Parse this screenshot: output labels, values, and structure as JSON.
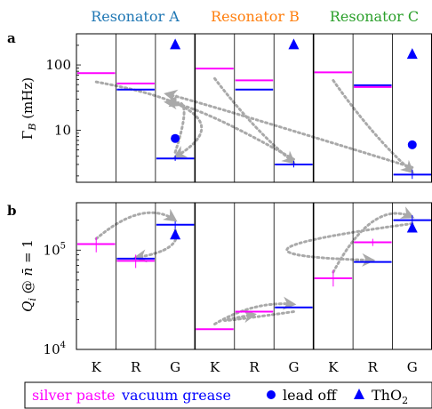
{
  "chart_data": {
    "type": "line",
    "columns": {
      "resonators": [
        {
          "name": "Resonator A",
          "color": "#1f77b4"
        },
        {
          "name": "Resonator B",
          "color": "#ff7f0e"
        },
        {
          "name": "Resonator C",
          "color": "#2ca02c"
        }
      ],
      "categories": [
        "K",
        "R",
        "G"
      ]
    },
    "panels": [
      {
        "label": "a",
        "ylabel": "Γ_B (mHz)",
        "yscale": "log",
        "ylim": [
          1.6,
          300
        ],
        "ticks": [
          {
            "value": 10,
            "label": "10"
          },
          {
            "value": 100,
            "label": "100"
          }
        ],
        "levels": [
          {
            "res": 0,
            "cat": 0,
            "value": 75,
            "material": "silver paste"
          },
          {
            "res": 0,
            "cat": 1,
            "value": 52,
            "material": "silver paste"
          },
          {
            "res": 0,
            "cat": 1,
            "value": 42,
            "material": "vacuum grease"
          },
          {
            "res": 0,
            "cat": 2,
            "value": 3.7,
            "material": "vacuum grease",
            "err": [
              3.4,
              4.1
            ]
          },
          {
            "res": 1,
            "cat": 0,
            "value": 88,
            "material": "silver paste"
          },
          {
            "res": 1,
            "cat": 1,
            "value": 58,
            "material": "silver paste"
          },
          {
            "res": 1,
            "cat": 1,
            "value": 42,
            "material": "vacuum grease"
          },
          {
            "res": 1,
            "cat": 2,
            "value": 3.0,
            "material": "vacuum grease",
            "err": [
              2.7,
              3.4
            ]
          },
          {
            "res": 2,
            "cat": 0,
            "value": 77,
            "material": "silver paste"
          },
          {
            "res": 2,
            "cat": 1,
            "value": 49,
            "material": "vacuum grease"
          },
          {
            "res": 2,
            "cat": 1,
            "value": 46,
            "material": "silver paste"
          },
          {
            "res": 2,
            "cat": 2,
            "value": 2.1,
            "material": "vacuum grease",
            "err": [
              1.8,
              2.5
            ]
          }
        ],
        "markers": [
          {
            "res": 0,
            "cat": 2,
            "value": 7.5,
            "shape": "circle"
          },
          {
            "res": 0,
            "cat": 2,
            "value": 210,
            "shape": "triangle"
          },
          {
            "res": 1,
            "cat": 2,
            "value": 210,
            "shape": "triangle"
          },
          {
            "res": 2,
            "cat": 2,
            "value": 6.0,
            "shape": "circle"
          },
          {
            "res": 2,
            "cat": 2,
            "value": 150,
            "shape": "triangle"
          }
        ],
        "arrows": [
          {
            "from": [
              0,
              0,
              55
            ],
            "ctrl": [
              1,
              1,
              20
            ],
            "to": [
              0,
              2,
              3.9
            ]
          },
          {
            "from": [
              0,
              2,
              4.6
            ],
            "ctrl": [
              0.5,
              2,
              40
            ],
            "to": [
              -0.05,
              2,
              24
            ]
          },
          {
            "from": [
              1,
              0,
              62
            ],
            "ctrl": [
              1,
              1,
              10
            ],
            "to": [
              1,
              2,
              3.2
            ]
          },
          {
            "from": [
              1,
              2,
              3.6
            ],
            "ctrl": [
              0.55,
              2,
              25
            ],
            "to": [
              -0.1,
              2,
              27
            ]
          },
          {
            "from": [
              2,
              0,
              58
            ],
            "ctrl": [
              2,
              1,
              8
            ],
            "to": [
              2,
              2,
              2.3
            ]
          },
          {
            "from": [
              2,
              2,
              2.7
            ],
            "ctrl": [
              0.4,
              2,
              30
            ],
            "to": [
              -0.1,
              2,
              36
            ]
          }
        ]
      },
      {
        "label": "b",
        "ylabel": "Q_i @ n̄ = 1",
        "yscale": "log",
        "ylim": [
          10000,
          300000
        ],
        "ticks": [
          {
            "value": 10000,
            "label": "10",
            "exp": "4"
          },
          {
            "value": 100000,
            "label": "10",
            "exp": "5"
          }
        ],
        "levels": [
          {
            "res": 0,
            "cat": 0,
            "value": 115000,
            "material": "silver paste",
            "err": [
              95000,
              135000
            ]
          },
          {
            "res": 0,
            "cat": 1,
            "value": 82000,
            "material": "vacuum grease"
          },
          {
            "res": 0,
            "cat": 1,
            "value": 78000,
            "material": "silver paste",
            "err": [
              66000,
              90000
            ]
          },
          {
            "res": 0,
            "cat": 2,
            "value": 180000,
            "material": "vacuum grease",
            "err": [
              165000,
              195000
            ]
          },
          {
            "res": 1,
            "cat": 0,
            "value": 16000,
            "material": "silver paste"
          },
          {
            "res": 1,
            "cat": 1,
            "value": 24000,
            "material": "silver paste"
          },
          {
            "res": 1,
            "cat": 2,
            "value": 26500,
            "material": "vacuum grease"
          },
          {
            "res": 2,
            "cat": 0,
            "value": 52000,
            "material": "silver paste",
            "err": [
              43000,
              63000
            ]
          },
          {
            "res": 2,
            "cat": 1,
            "value": 120000,
            "material": "silver paste",
            "err": [
              110000,
              130000
            ]
          },
          {
            "res": 2,
            "cat": 1,
            "value": 76000,
            "material": "vacuum grease"
          },
          {
            "res": 2,
            "cat": 2,
            "value": 200000,
            "material": "vacuum grease",
            "err": [
              180000,
              225000
            ]
          }
        ],
        "markers": [
          {
            "res": 0,
            "cat": 2,
            "value": 145000,
            "shape": "triangle"
          },
          {
            "res": 2,
            "cat": 2,
            "value": 170000,
            "shape": "triangle"
          }
        ],
        "arrows": [
          {
            "from": [
              0,
              0,
              130000
            ],
            "ctrl": [
              0.2,
              1,
              330000
            ],
            "to": [
              0,
              2,
              200000
            ]
          },
          {
            "from": [
              0,
              2,
              160000
            ],
            "ctrl": [
              0.2,
              2,
              100000
            ],
            "to": [
              0,
              1,
              84000
            ]
          },
          {
            "from": [
              1,
              0,
              18000
            ],
            "ctrl": [
              1,
              1,
              31000
            ],
            "to": [
              1,
              2,
              28500
            ]
          },
          {
            "from": [
              1,
              2,
              24000
            ],
            "ctrl": [
              0.1,
              2,
              16500
            ],
            "to": [
              1,
              1,
              22500
            ]
          },
          {
            "from": [
              2,
              0,
              60000
            ],
            "ctrl": [
              2,
              1,
              330000
            ],
            "to": [
              2,
              2,
              215000
            ]
          },
          {
            "from": [
              2,
              2,
              185000
            ],
            "ctrl": [
              0.2,
              2,
              90000
            ],
            "to": [
              2,
              1,
              79000
            ]
          }
        ]
      }
    ],
    "legend": {
      "placement": "bottom",
      "entries": [
        {
          "label": "silver paste",
          "kind": "text",
          "color": "#ff00ff"
        },
        {
          "label": "vacuum grease",
          "kind": "text",
          "color": "#0000ff"
        },
        {
          "label": "lead off",
          "kind": "circle",
          "color": "#0000ff"
        },
        {
          "label": "ThO",
          "sub": "2",
          "kind": "triangle",
          "color": "#0000ff"
        }
      ]
    },
    "colors": {
      "silver paste": "#ff00ff",
      "vacuum grease": "#0000ff",
      "marker": "#0000ff",
      "arrow": "#a9a9a9"
    }
  }
}
